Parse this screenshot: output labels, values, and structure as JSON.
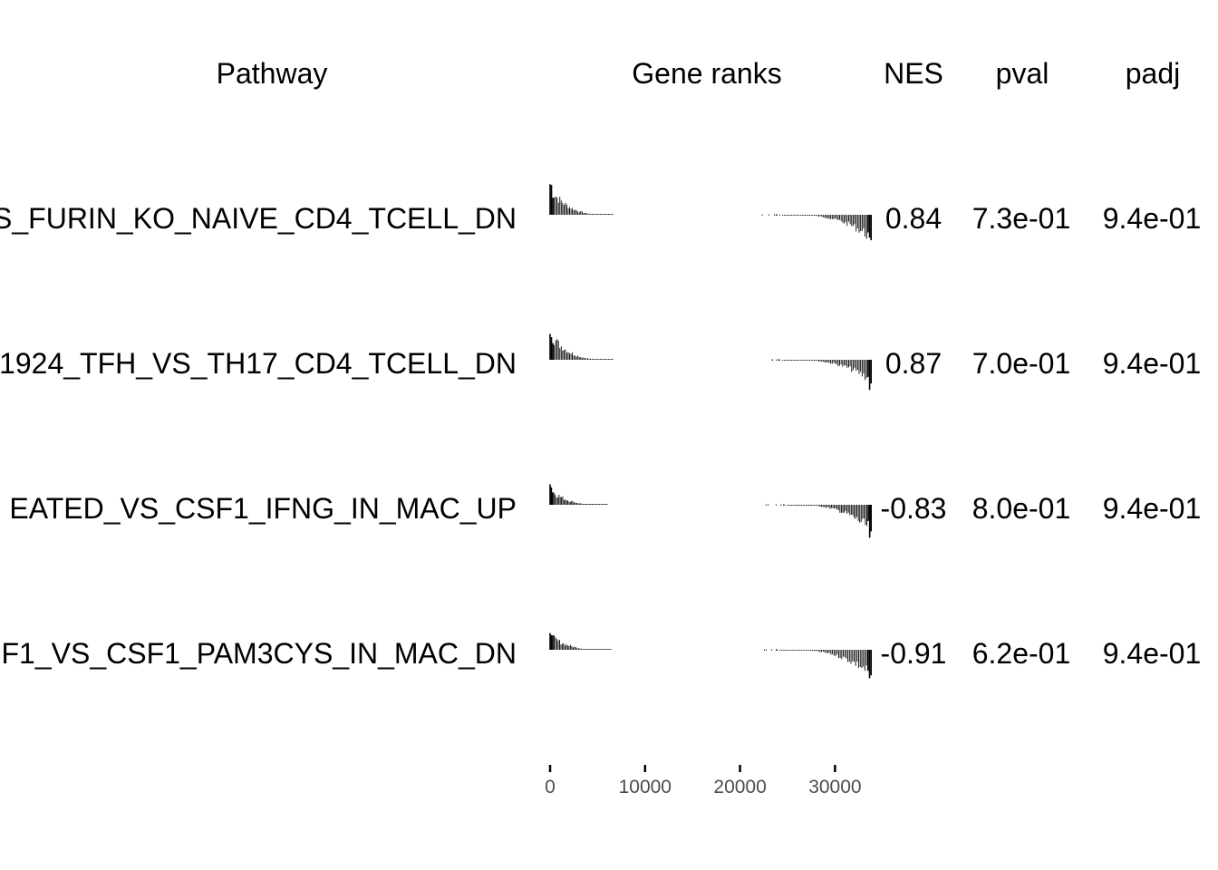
{
  "headers": {
    "pathway": "Pathway",
    "gene_ranks": "Gene ranks",
    "nes": "NES",
    "pval": "pval",
    "padj": "padj"
  },
  "rows": [
    {
      "pathway": "S_FURIN_KO_NAIVE_CD4_TCELL_DN",
      "nes": "0.84",
      "pval": "7.3e-01",
      "padj": "9.4e-01"
    },
    {
      "pathway": "1924_TFH_VS_TH17_CD4_TCELL_DN",
      "nes": "0.87",
      "pval": "7.0e-01",
      "padj": "9.4e-01"
    },
    {
      "pathway": "EATED_VS_CSF1_IFNG_IN_MAC_UP",
      "nes": "-0.83",
      "pval": "8.0e-01",
      "padj": "9.4e-01"
    },
    {
      "pathway": "F1_VS_CSF1_PAM3CYS_IN_MAC_DN",
      "nes": "-0.91",
      "pval": "6.2e-01",
      "padj": "9.4e-01"
    }
  ],
  "chart_data": {
    "type": "table",
    "columns": [
      "Pathway",
      "Gene ranks",
      "NES",
      "pval",
      "padj"
    ],
    "x_axis": {
      "ticks": [
        0,
        10000,
        20000,
        30000
      ],
      "tick_labels": [
        "0",
        "10000",
        "20000",
        "30000"
      ],
      "range": [
        0,
        33800
      ]
    },
    "rows": [
      {
        "pathway": "S_FURIN_KO_NAIVE_CD4_TCELL_DN",
        "nes": 0.84,
        "pval": 0.73,
        "padj": 0.94
      },
      {
        "pathway": "1924_TFH_VS_TH17_CD4_TCELL_DN",
        "nes": 0.87,
        "pval": 0.7,
        "padj": 0.94
      },
      {
        "pathway": "EATED_VS_CSF1_IFNG_IN_MAC_UP",
        "nes": -0.83,
        "pval": 0.8,
        "padj": 0.94
      },
      {
        "pathway": "F1_VS_CSF1_PAM3CYS_IN_MAC_DN",
        "nes": -0.91,
        "pval": 0.62,
        "padj": 0.94
      }
    ],
    "gene_ranks": [
      {
        "left_segment": [
          0,
          6600
        ],
        "right_segment": [
          24500,
          33800
        ],
        "left_height": 1.0,
        "right_height": 0.9
      },
      {
        "left_segment": [
          0,
          6600
        ],
        "right_segment": [
          24500,
          33800
        ],
        "left_height": 1.0,
        "right_height": 0.8
      },
      {
        "left_segment": [
          0,
          6000
        ],
        "right_segment": [
          25000,
          33800
        ],
        "left_height": 0.6,
        "right_height": 1.0
      },
      {
        "left_segment": [
          0,
          6400
        ],
        "right_segment": [
          24200,
          33800
        ],
        "left_height": 0.55,
        "right_height": 0.95
      }
    ]
  }
}
